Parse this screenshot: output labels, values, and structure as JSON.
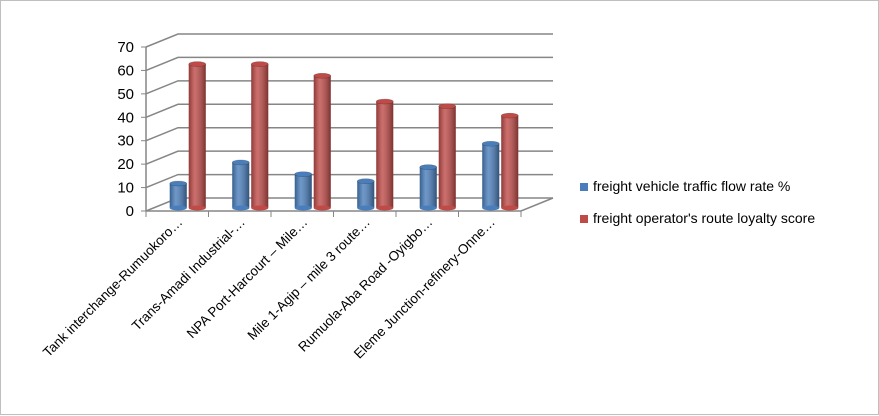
{
  "chart_data": {
    "type": "bar",
    "style": "3d-cylinder",
    "title": "",
    "xlabel": "",
    "ylabel": "",
    "ylim": [
      0,
      70
    ],
    "yticks": [
      0,
      10,
      20,
      30,
      40,
      50,
      60,
      70
    ],
    "grid": true,
    "legend_position": "right",
    "categories": [
      "Tank interchange-Rumuokoro…",
      "Trans-Amadi Industrial-…",
      "NPA Port-Harcourt – Mile…",
      "Mile 1-Agip – mile 3 route…",
      "Rumuola-Aba Road -Oyigbo…",
      "Eleme Junction-refinery-Onne…"
    ],
    "series": [
      {
        "name": "freight vehicle traffic flow rate %",
        "color": "#4a7ebb",
        "values": [
          10,
          19,
          14,
          11,
          17,
          27
        ]
      },
      {
        "name": "freight operator's route loyalty score",
        "color": "#be4b48",
        "values": [
          61,
          61,
          56,
          45,
          43,
          39
        ]
      }
    ]
  }
}
